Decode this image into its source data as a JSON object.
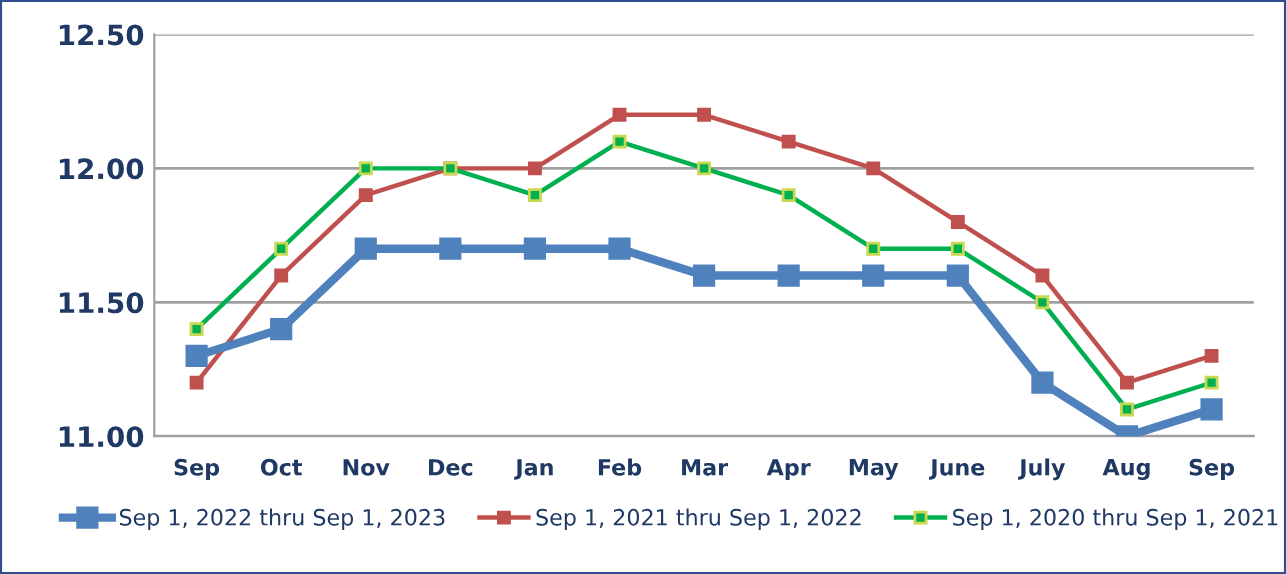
{
  "chart_data": {
    "type": "line",
    "categories": [
      "Sep",
      "Oct",
      "Nov",
      "Dec",
      "Jan",
      "Feb",
      "Mar",
      "Apr",
      "May",
      "June",
      "July",
      "Aug",
      "Sep"
    ],
    "series": [
      {
        "name": "Sep 1, 2022 thru Sep 1, 2023",
        "color": "#4f81bd",
        "values": [
          11.3,
          11.4,
          11.7,
          11.7,
          11.7,
          11.7,
          11.6,
          11.6,
          11.6,
          11.6,
          11.2,
          11.0,
          11.1
        ]
      },
      {
        "name": "Sep 1, 2021 thru Sep 1, 2022",
        "color": "#c0504d",
        "values": [
          11.2,
          11.6,
          11.9,
          12.0,
          12.0,
          12.2,
          12.2,
          12.1,
          12.0,
          11.8,
          11.6,
          11.2,
          11.3
        ]
      },
      {
        "name": "Sep 1, 2020 thru Sep 1, 2021",
        "color": "#00b050",
        "values": [
          11.4,
          11.7,
          12.0,
          12.0,
          11.9,
          12.1,
          12.0,
          11.9,
          11.7,
          11.7,
          11.5,
          11.1,
          11.2
        ]
      }
    ],
    "ylim": [
      11.0,
      12.5
    ],
    "yticks": [
      {
        "value": 11.0,
        "label": "11.00"
      },
      {
        "value": 11.5,
        "label": "11.50"
      },
      {
        "value": 12.0,
        "label": "12.00"
      },
      {
        "value": 12.5,
        "label": "12.50"
      }
    ],
    "grid": "y",
    "legend": "bottom",
    "marker": "square",
    "line_style": "solid"
  }
}
